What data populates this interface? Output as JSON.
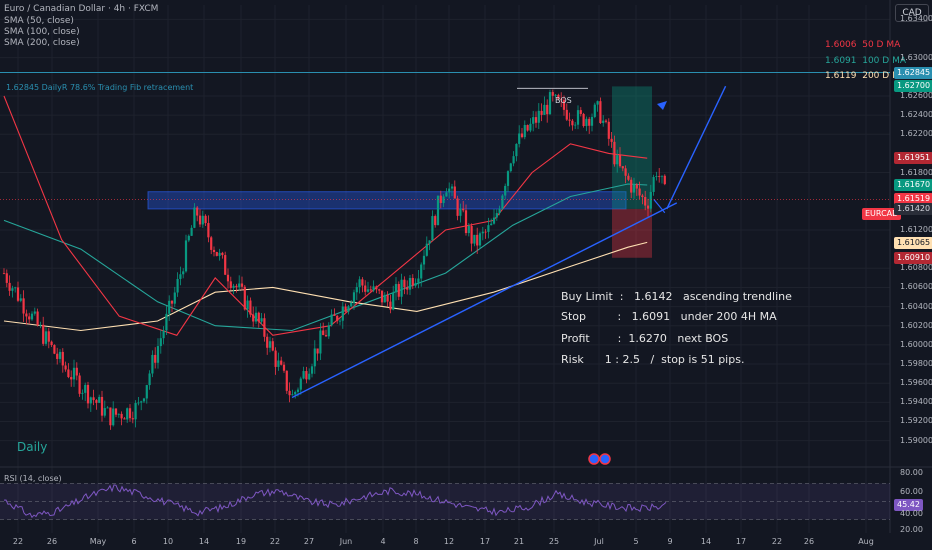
{
  "header": {
    "symbol_line": "Euro / Canadian Dollar · 4h · FXCM",
    "indicators": [
      "SMA (50, close)",
      "SMA (100, close)",
      "SMA (200, close)"
    ]
  },
  "currency_button": "CAD",
  "ma_legend": [
    {
      "value": "1.6006",
      "label": "50 D MA",
      "color": "#f23645"
    },
    {
      "value": "1.6091",
      "label": "100 D MA",
      "color": "#26a69a"
    },
    {
      "value": "1.6119",
      "label": "200 D MA",
      "color": "#ffe0b2"
    }
  ],
  "fib_label": "1.62845 DailyR 78.6% Trading Fib retracement",
  "bos_label": "BOS",
  "daily_label": "Daily",
  "annotations": [
    "Buy Limit  :   1.6142   ascending trendline",
    "Stop         :   1.6091   under 200 4H MA",
    "Profit        :  1.6270   next BOS",
    "Risk      1 : 2.5   /  stop is 51 pips."
  ],
  "price_tags": [
    {
      "text": "1.62845",
      "price": 1.62845,
      "bg": "#2a8fb0",
      "fg": "#ffffff"
    },
    {
      "text": "1.62700",
      "price": 1.627,
      "bg": "#089981",
      "fg": "#ffffff"
    },
    {
      "text": "1.61951",
      "price": 1.61951,
      "bg": "#b22833",
      "fg": "#ffffff"
    },
    {
      "text": "1.61670",
      "price": 1.6167,
      "bg": "#089981",
      "fg": "#ffffff"
    },
    {
      "text": "1.61519",
      "price": 1.61519,
      "bg": "#f23645",
      "fg": "#ffffff"
    },
    {
      "text": "1.61420",
      "price": 1.6142,
      "bg": "#2a2e39",
      "fg": "#d1d4dc"
    },
    {
      "text": "1.61065",
      "price": 1.61065,
      "bg": "#ffe0b2",
      "fg": "#131722"
    },
    {
      "text": "1.60910",
      "price": 1.6091,
      "bg": "#b22833",
      "fg": "#ffffff"
    }
  ],
  "pair_tag": "EURCAD",
  "rsi": {
    "title": "RSI (14, close)",
    "value": "45.42",
    "axis": [
      "80.00",
      "60.00",
      "40.00",
      "20.00"
    ]
  },
  "chart_data": {
    "type": "candlestick",
    "y_axis": {
      "labels": [
        "1.63400",
        "1.63000",
        "1.62600",
        "1.62400",
        "1.62200",
        "1.61800",
        "1.61200",
        "1.60800",
        "1.60600",
        "1.60400",
        "1.60200",
        "1.60000",
        "1.59800",
        "1.59600",
        "1.59400",
        "1.59200",
        "1.59000"
      ],
      "range": [
        1.5885,
        1.6355
      ]
    },
    "x_axis": {
      "labels": [
        "22",
        "26",
        "May",
        "6",
        "10",
        "14",
        "19",
        "22",
        "27",
        "Jun",
        "4",
        "8",
        "12",
        "17",
        "21",
        "25",
        "Jul",
        "5",
        "9",
        "14",
        "17",
        "22",
        "26",
        "Aug"
      ]
    },
    "close_path": [
      [
        "Apr 20",
        1.6075
      ],
      [
        "Apr 26",
        1.598
      ],
      [
        "May 1",
        1.5925
      ],
      [
        "May 4",
        1.5935
      ],
      [
        "May 8",
        1.606
      ],
      [
        "May 10",
        1.614
      ],
      [
        "May 13",
        1.608
      ],
      [
        "May 17",
        1.6015
      ],
      [
        "May 20",
        1.5945
      ],
      [
        "May 23",
        1.6005
      ],
      [
        "May 27",
        1.6065
      ],
      [
        "May 30",
        1.6045
      ],
      [
        "Jun 2",
        1.6075
      ],
      [
        "Jun 5",
        1.617
      ],
      [
        "Jun 8",
        1.6105
      ],
      [
        "Jun 10",
        1.6125
      ],
      [
        "Jun 12",
        1.6205
      ],
      [
        "Jun 16",
        1.6255
      ],
      [
        "Jun 19",
        1.6235
      ],
      [
        "Jun 21",
        1.6245
      ],
      [
        "Jun 23",
        1.6185
      ],
      [
        "Jun 25",
        1.6158
      ],
      [
        "Jun 26",
        1.6148
      ],
      [
        "Jun 27",
        1.6185
      ],
      [
        "Jun 28",
        1.6152
      ]
    ],
    "sma50_d": [
      [
        "Apr 20",
        1.626
      ],
      [
        "Apr 26",
        1.611
      ],
      [
        "May 2",
        1.603
      ],
      [
        "May 8",
        1.601
      ],
      [
        "May 12",
        1.607
      ],
      [
        "May 18",
        1.601
      ],
      [
        "May 24",
        1.602
      ],
      [
        "May 30",
        1.607
      ],
      [
        "Jun 5",
        1.612
      ],
      [
        "Jun 10",
        1.613
      ],
      [
        "Jun 14",
        1.618
      ],
      [
        "Jun 18",
        1.621
      ],
      [
        "Jun 22",
        1.62
      ],
      [
        "Jun 26",
        1.6195
      ]
    ],
    "sma100_d": [
      [
        "Apr 20",
        1.613
      ],
      [
        "Apr 28",
        1.61
      ],
      [
        "May 6",
        1.6045
      ],
      [
        "May 12",
        1.602
      ],
      [
        "May 20",
        1.6015
      ],
      [
        "May 28",
        1.6045
      ],
      [
        "Jun 5",
        1.6075
      ],
      [
        "Jun 12",
        1.6125
      ],
      [
        "Jun 18",
        1.6155
      ],
      [
        "Jun 24",
        1.6168
      ],
      [
        "Jun 26",
        1.6167
      ]
    ],
    "sma200_d": [
      [
        "Apr 20",
        1.6025
      ],
      [
        "Apr 28",
        1.6015
      ],
      [
        "May 6",
        1.6025
      ],
      [
        "May 12",
        1.6055
      ],
      [
        "May 18",
        1.606
      ],
      [
        "May 26",
        1.6045
      ],
      [
        "Jun 2",
        1.6035
      ],
      [
        "Jun 10",
        1.6055
      ],
      [
        "Jun 18",
        1.6082
      ],
      [
        "Jun 24",
        1.6102
      ],
      [
        "Jun 26",
        1.6107
      ]
    ],
    "fib_level": 1.62845,
    "bos_level": 1.6268,
    "buy_zone": [
      1.6142,
      1.616
    ],
    "trade": {
      "entry": 1.6142,
      "target": 1.627,
      "stop": 1.6091
    },
    "trendline": [
      [
        "May 20",
        1.5945
      ],
      [
        "Jun 27",
        1.6142
      ]
    ],
    "projection": [
      [
        "Jun 27",
        1.6142
      ],
      [
        "Jun 30",
        1.6265
      ]
    ],
    "rsi_series": [
      52,
      34,
      40,
      55,
      66,
      58,
      48,
      38,
      44,
      58,
      62,
      50,
      46,
      55,
      62,
      58,
      50,
      42,
      38,
      44,
      58,
      50,
      45,
      42,
      45
    ]
  }
}
